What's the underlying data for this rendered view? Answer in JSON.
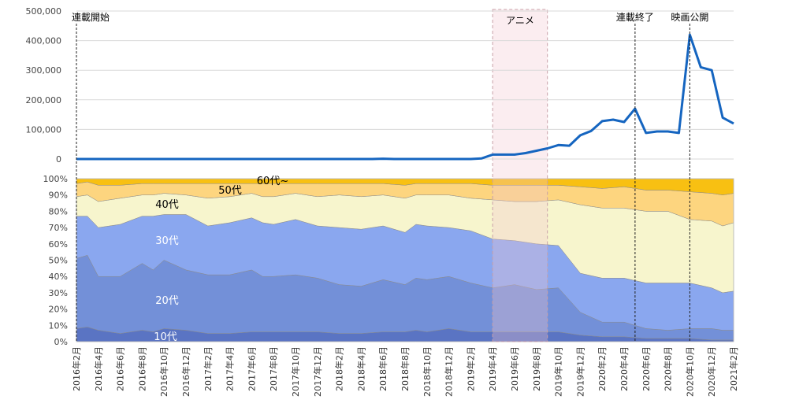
{
  "chart_data": [
    {
      "type": "line",
      "ylim": [
        0,
        500000
      ],
      "yticks": [
        "500,000",
        "400,000",
        "300,000",
        "200,000",
        "100,000",
        "0"
      ],
      "x": [
        "2016年2月",
        "2016年3月",
        "2016年4月",
        "2016年5月",
        "2016年6月",
        "2016年7月",
        "2016年8月",
        "2016年9月",
        "2016年10月",
        "2016年11月",
        "2016年12月",
        "2017年1月",
        "2017年2月",
        "2017年3月",
        "2017年4月",
        "2017年5月",
        "2017年6月",
        "2017年7月",
        "2017年8月",
        "2017年9月",
        "2017年10月",
        "2017年11月",
        "2017年12月",
        "2018年1月",
        "2018年2月",
        "2018年3月",
        "2018年4月",
        "2018年5月",
        "2018年6月",
        "2018年7月",
        "2018年8月",
        "2018年9月",
        "2018年10月",
        "2018年11月",
        "2018年12月",
        "2019年1月",
        "2019年2月",
        "2019年3月",
        "2019年4月",
        "2019年5月",
        "2019年6月",
        "2019年7月",
        "2019年8月",
        "2019年9月",
        "2019年10月",
        "2019年11月",
        "2019年12月",
        "2020年1月",
        "2020年2月",
        "2020年3月",
        "2020年4月",
        "2020年5月",
        "2020年6月",
        "2020年7月",
        "2020年8月",
        "2020年9月",
        "2020年10月",
        "2020年11月",
        "2020年12月",
        "2021年1月",
        "2021年2月"
      ],
      "values": [
        0,
        0,
        0,
        0,
        0,
        0,
        0,
        0,
        0,
        0,
        0,
        0,
        0,
        0,
        0,
        0,
        0,
        0,
        0,
        0,
        0,
        0,
        0,
        0,
        0,
        0,
        0,
        0,
        1000,
        0,
        0,
        0,
        0,
        0,
        0,
        0,
        0,
        2000,
        15000,
        15000,
        15000,
        20000,
        28000,
        36000,
        47000,
        45000,
        80000,
        95000,
        128000,
        133000,
        125000,
        170000,
        88000,
        93000,
        93000,
        88000,
        420000,
        310000,
        300000,
        140000,
        120000
      ],
      "color": "#1565C0",
      "grid": true,
      "annotations": [
        {
          "text": "連載開始",
          "at": "2016年2月"
        },
        {
          "text": "アニメ",
          "range": [
            "2019年4月",
            "2019年9月"
          ]
        },
        {
          "text": "連載終了",
          "at": "2020年5月"
        },
        {
          "text": "映画公開",
          "at": "2020年10月"
        }
      ]
    },
    {
      "type": "area",
      "stacked_percent": true,
      "ylim": [
        0,
        100
      ],
      "yticks": [
        "100%",
        "90%",
        "80%",
        "70%",
        "60%",
        "50%",
        "40%",
        "30%",
        "20%",
        "10%",
        "0%"
      ],
      "xtick_labels": [
        "2016年2月",
        "2016年4月",
        "2016年6月",
        "2016年8月",
        "2016年10月",
        "2016年12月",
        "2017年2月",
        "2017年4月",
        "2017年6月",
        "2017年8月",
        "2017年10月",
        "2017年12月",
        "2018年2月",
        "2018年4月",
        "2018年6月",
        "2018年8月",
        "2018年10月",
        "2018年12月",
        "2019年2月",
        "2019年4月",
        "2019年6月",
        "2019年8月",
        "2019年10月",
        "2019年12月",
        "2020年2月",
        "2020年4月",
        "2020年6月",
        "2020年8月",
        "2020年10月",
        "2020年12月",
        "2021年2月"
      ],
      "series_labels": [
        "10代",
        "20代",
        "30代",
        "40代",
        "50代",
        "60代~"
      ],
      "colors": [
        "#5a74c3",
        "#7390d8",
        "#8aa7ef",
        "#f7f5cd",
        "#fdd57f",
        "#f8c012"
      ],
      "cumulative_boundaries": [
        {
          "x": "2016年2月",
          "b": [
            8,
            51,
            77,
            89,
            97
          ]
        },
        {
          "x": "2016年3月",
          "b": [
            9,
            53,
            77,
            90,
            98
          ]
        },
        {
          "x": "2016年4月",
          "b": [
            7,
            40,
            70,
            86,
            96
          ]
        },
        {
          "x": "2016年6月",
          "b": [
            5,
            40,
            72,
            88,
            96
          ]
        },
        {
          "x": "2016年8月",
          "b": [
            7,
            48,
            77,
            90,
            97
          ]
        },
        {
          "x": "2016年9月",
          "b": [
            6,
            44,
            77,
            90,
            97
          ]
        },
        {
          "x": "2016年10月",
          "b": [
            8,
            50,
            78,
            91,
            97
          ]
        },
        {
          "x": "2016年12月",
          "b": [
            7,
            44,
            78,
            90,
            97
          ]
        },
        {
          "x": "2017年2月",
          "b": [
            5,
            41,
            71,
            88,
            97
          ]
        },
        {
          "x": "2017年4月",
          "b": [
            5,
            41,
            73,
            89,
            97
          ]
        },
        {
          "x": "2017年6月",
          "b": [
            6,
            44,
            76,
            91,
            97
          ]
        },
        {
          "x": "2017年7月",
          "b": [
            6,
            40,
            73,
            89,
            97
          ]
        },
        {
          "x": "2017年8月",
          "b": [
            6,
            40,
            72,
            89,
            97
          ]
        },
        {
          "x": "2017年10月",
          "b": [
            6,
            41,
            75,
            91,
            97
          ]
        },
        {
          "x": "2017年12月",
          "b": [
            6,
            39,
            71,
            89,
            97
          ]
        },
        {
          "x": "2018年2月",
          "b": [
            5,
            35,
            70,
            90,
            97
          ]
        },
        {
          "x": "2018年4月",
          "b": [
            5,
            34,
            69,
            89,
            97
          ]
        },
        {
          "x": "2018年6月",
          "b": [
            6,
            38,
            71,
            90,
            97
          ]
        },
        {
          "x": "2018年8月",
          "b": [
            6,
            35,
            67,
            88,
            96
          ]
        },
        {
          "x": "2018年9月",
          "b": [
            7,
            39,
            72,
            90,
            97
          ]
        },
        {
          "x": "2018年10月",
          "b": [
            6,
            38,
            71,
            90,
            97
          ]
        },
        {
          "x": "2018年12月",
          "b": [
            8,
            40,
            70,
            90,
            97
          ]
        },
        {
          "x": "2019年2月",
          "b": [
            6,
            36,
            68,
            88,
            97
          ]
        },
        {
          "x": "2019年4月",
          "b": [
            6,
            33,
            63,
            87,
            96
          ]
        },
        {
          "x": "2019年6月",
          "b": [
            6,
            35,
            62,
            86,
            96
          ]
        },
        {
          "x": "2019年8月",
          "b": [
            6,
            32,
            60,
            86,
            96
          ]
        },
        {
          "x": "2019年10月",
          "b": [
            6,
            33,
            59,
            87,
            96
          ]
        },
        {
          "x": "2019年12月",
          "b": [
            4,
            18,
            42,
            84,
            95
          ]
        },
        {
          "x": "2020年2月",
          "b": [
            3,
            12,
            39,
            82,
            94
          ]
        },
        {
          "x": "2020年4月",
          "b": [
            3,
            12,
            39,
            82,
            95
          ]
        },
        {
          "x": "2020年6月",
          "b": [
            2,
            8,
            36,
            80,
            93
          ]
        },
        {
          "x": "2020年8月",
          "b": [
            2,
            7,
            36,
            80,
            93
          ]
        },
        {
          "x": "2020年10月",
          "b": [
            2,
            8,
            36,
            75,
            92
          ]
        },
        {
          "x": "2020年12月",
          "b": [
            1,
            8,
            33,
            74,
            91
          ]
        },
        {
          "x": "2021年1月",
          "b": [
            1,
            7,
            30,
            71,
            90
          ]
        },
        {
          "x": "2021年2月",
          "b": [
            1,
            7,
            31,
            73,
            91
          ]
        }
      ],
      "gray_band": [
        "2019年4月",
        "2019年9月"
      ]
    }
  ]
}
